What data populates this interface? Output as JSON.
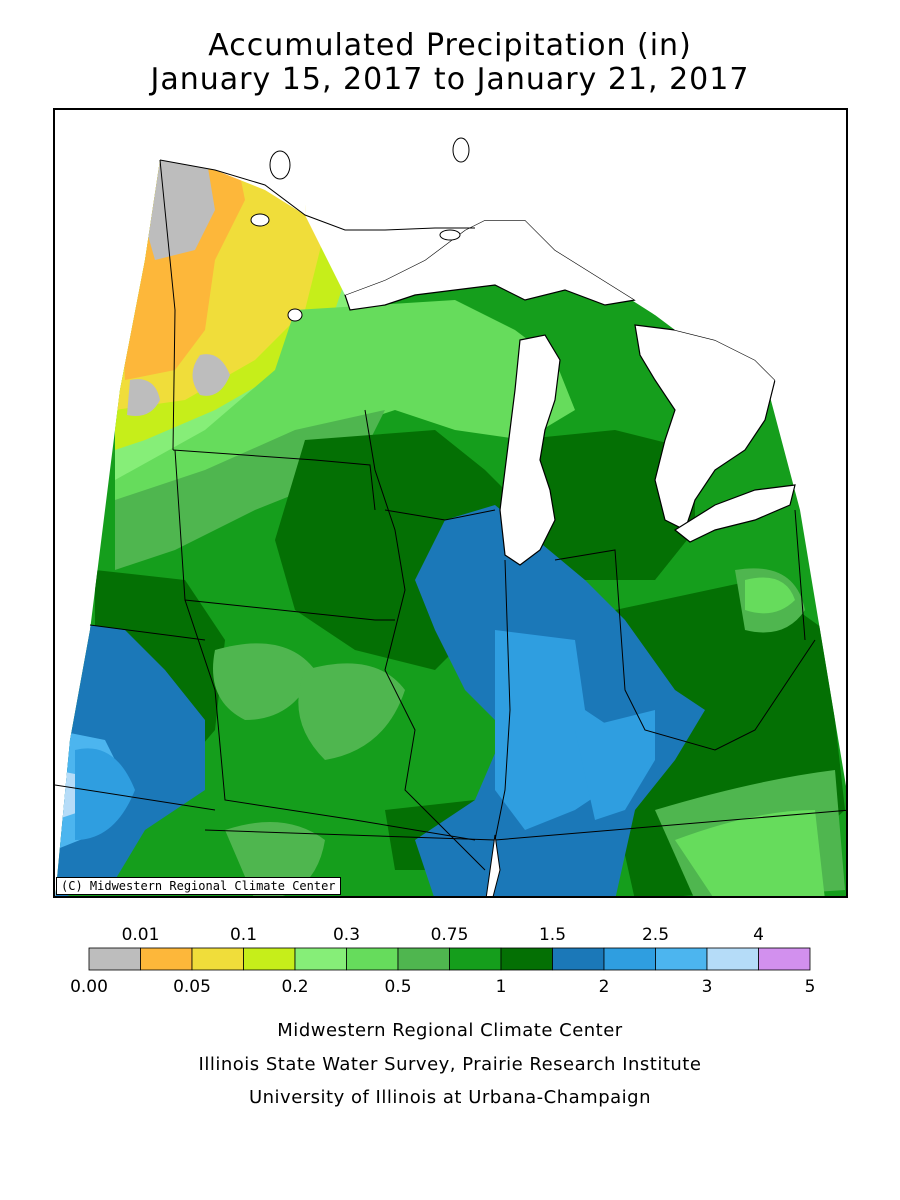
{
  "title": {
    "line1": "Accumulated Precipitation (in)",
    "line2": "January 15, 2017 to January 21, 2017"
  },
  "map": {
    "copyright": "(C) Midwestern Regional Climate Center",
    "region": "Upper Midwest / Great Lakes",
    "lake_color": "#ffffff",
    "boundary_color": "#000000"
  },
  "legend": {
    "upper_labels": [
      "0.01",
      "0.1",
      "0.3",
      "0.75",
      "1.5",
      "2.5",
      "4"
    ],
    "lower_labels": [
      "0.00",
      "0.05",
      "0.2",
      "0.5",
      "1",
      "2",
      "3",
      "5"
    ],
    "colors": [
      "#bdbdbd",
      "#fdb73a",
      "#f0dd3a",
      "#c6ee1a",
      "#86ee78",
      "#66dc5c",
      "#4fb64f",
      "#159e1c",
      "#047004",
      "#1b78b8",
      "#2f9ee0",
      "#4cb5ef",
      "#b5dcf8",
      "#d290ee"
    ]
  },
  "credits": [
    "Midwestern Regional Climate Center",
    "Illinois State Water Survey, Prairie Research Institute",
    "University of Illinois at Urbana-Champaign"
  ]
}
